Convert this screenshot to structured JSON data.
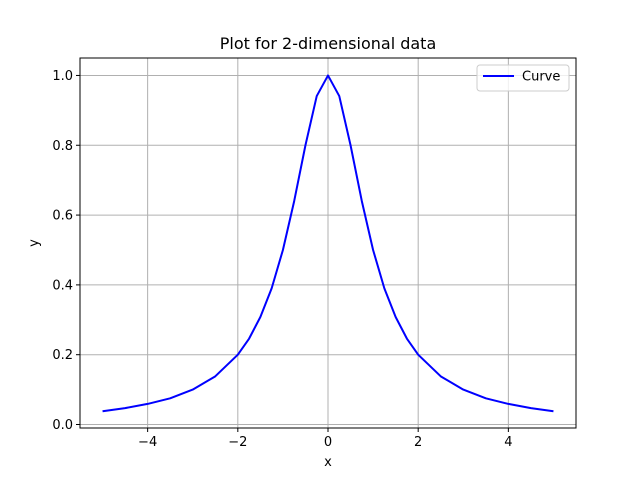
{
  "chart_data": {
    "type": "line",
    "title": "Plot for 2-dimensional data",
    "xlabel": "x",
    "ylabel": "y",
    "xlim": [
      -5.5,
      5.5
    ],
    "ylim": [
      -0.01,
      1.05
    ],
    "xticks": [
      -4,
      -2,
      0,
      2,
      4
    ],
    "xtick_labels": [
      "−4",
      "−2",
      "0",
      "2",
      "4"
    ],
    "yticks": [
      0.0,
      0.2,
      0.4,
      0.6,
      0.8,
      1.0
    ],
    "ytick_labels": [
      "0.0",
      "0.2",
      "0.4",
      "0.6",
      "0.8",
      "1.0"
    ],
    "grid": true,
    "legend_position": "top-right",
    "series": [
      {
        "name": "Curve",
        "color": "#0000ff",
        "x": [
          -5,
          -4.5,
          -4,
          -3.5,
          -3,
          -2.5,
          -2,
          -1.75,
          -1.5,
          -1.25,
          -1,
          -0.75,
          -0.5,
          -0.25,
          0,
          0.25,
          0.5,
          0.75,
          1,
          1.25,
          1.5,
          1.75,
          2,
          2.5,
          3,
          3.5,
          4,
          4.5,
          5
        ],
        "y": [
          0.038,
          0.047,
          0.059,
          0.075,
          0.1,
          0.138,
          0.2,
          0.246,
          0.308,
          0.39,
          0.5,
          0.64,
          0.8,
          0.941,
          1.0,
          0.941,
          0.8,
          0.64,
          0.5,
          0.39,
          0.308,
          0.246,
          0.2,
          0.138,
          0.1,
          0.075,
          0.059,
          0.047,
          0.038
        ]
      }
    ]
  }
}
